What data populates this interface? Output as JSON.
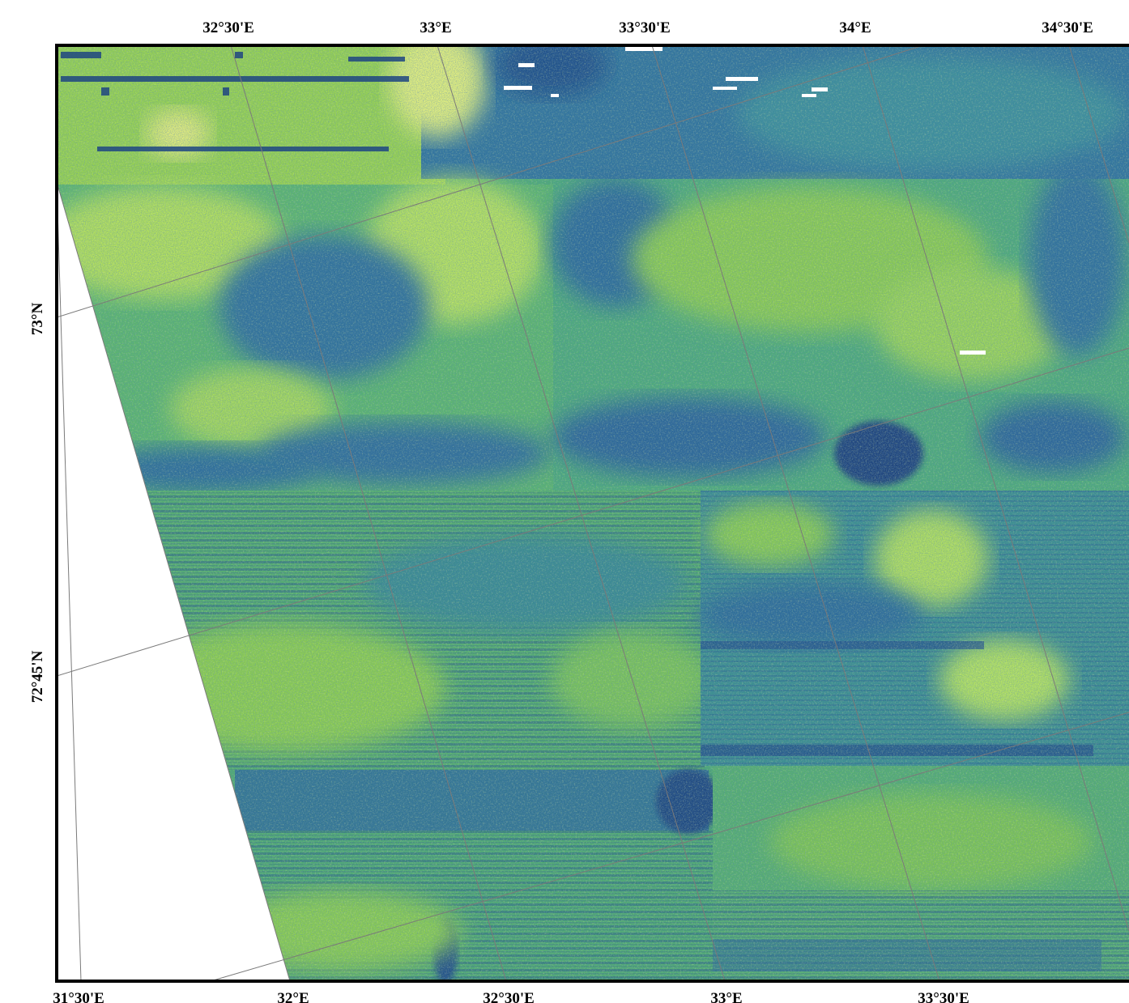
{
  "map": {
    "top_longitude_labels": [
      "32°30'E",
      "33°E",
      "33°30'E",
      "34°E",
      "34°30'E"
    ],
    "bottom_longitude_labels": [
      "31°30'E",
      "32°E",
      "32°30'E",
      "33°E",
      "33°30'E"
    ],
    "latitude_labels": [
      "73°N",
      "72°45'N"
    ],
    "colors": {
      "frame": "#000000",
      "graticule": "#7a7a7a",
      "background": "#ffffff",
      "palette": [
        "#2a5f8f",
        "#2d7a9a",
        "#339b8a",
        "#55b46a",
        "#8ccf3f",
        "#c6e84a",
        "#f2f5a0"
      ]
    },
    "layer": "backscatter mosaic",
    "nodata_area": "white wedge along the west side"
  }
}
